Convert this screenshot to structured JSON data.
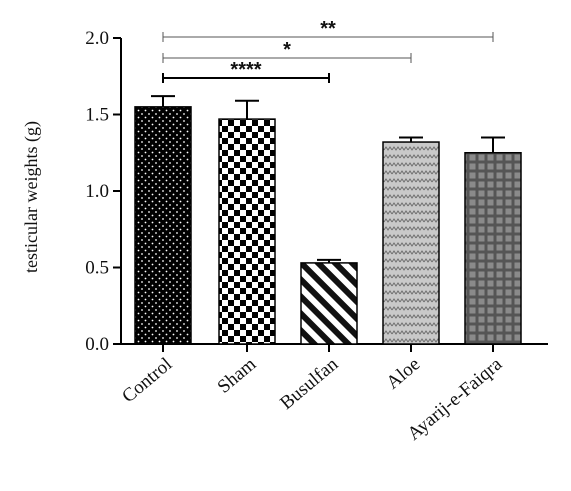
{
  "chart_data": {
    "type": "bar",
    "title": "",
    "xlabel": "",
    "ylabel": "testicular weights (g)",
    "ylim": [
      0,
      2.0
    ],
    "yticks": [
      "0.0",
      "0.5",
      "1.0",
      "1.5",
      "2.0"
    ],
    "grid": false,
    "categories": [
      "Control",
      "Sham",
      "Busulfan",
      "Aloe",
      "Ayarij-e-Faiqra"
    ],
    "values": [
      1.55,
      1.47,
      0.53,
      1.32,
      1.25
    ],
    "errors": [
      0.07,
      0.12,
      0.02,
      0.03,
      0.1
    ],
    "patterns": [
      "dots-on-black",
      "checkerboard",
      "diagonal-stripes",
      "zigzag-grey",
      "grid-dark"
    ],
    "significance": [
      {
        "from": "Control",
        "to": "Busulfan",
        "label": "****"
      },
      {
        "from": "Control",
        "to": "Aloe",
        "label": "*"
      },
      {
        "from": "Control",
        "to": "Ayarij-e-Faiqra",
        "label": "**"
      }
    ]
  }
}
